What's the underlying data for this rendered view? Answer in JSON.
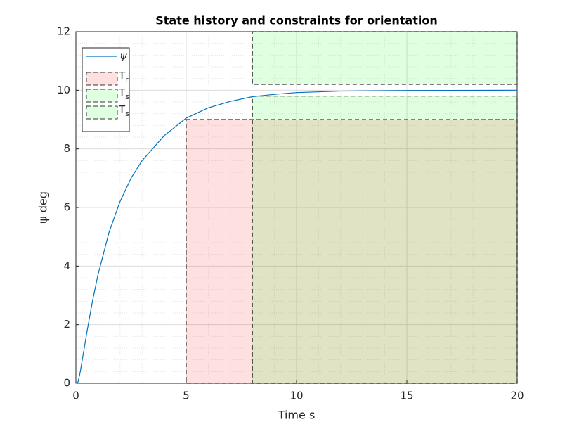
{
  "chart_data": {
    "type": "line",
    "title": "State history and constraints for orientation",
    "xlabel": "Time s",
    "ylabel": "ψ deg",
    "x": [
      0,
      0.1,
      0.2,
      0.3,
      0.5,
      0.75,
      1,
      1.5,
      2,
      2.5,
      3,
      4,
      5,
      6,
      7,
      8,
      9,
      10,
      12,
      15,
      20
    ],
    "series": [
      {
        "name": "ψ",
        "color": "#0072bd",
        "values": [
          0,
          0.05,
          0.4,
          0.85,
          1.75,
          2.8,
          3.7,
          5.15,
          6.2,
          7.0,
          7.6,
          8.45,
          9.05,
          9.4,
          9.62,
          9.78,
          9.86,
          9.92,
          9.97,
          9.99,
          10.0
        ]
      }
    ],
    "regions": [
      {
        "name": "T",
        "sub": "r",
        "color": "#ff0000",
        "x": [
          5,
          20
        ],
        "y": [
          0,
          9
        ]
      },
      {
        "name": "T",
        "sub": "s",
        "color": "#00ff00",
        "x": [
          8,
          20
        ],
        "y": [
          10.2,
          12
        ]
      },
      {
        "name": "T",
        "sub": "s",
        "color": "#00ff00",
        "x": [
          8,
          20
        ],
        "y": [
          0,
          9.8
        ]
      }
    ],
    "xlim": [
      0,
      20
    ],
    "xticks": [
      0,
      5,
      10,
      15,
      20
    ],
    "ylim": [
      0,
      12
    ],
    "yticks": [
      0,
      2,
      4,
      6,
      8,
      10,
      12
    ],
    "grid": true,
    "minor_grid": true,
    "legend": "upper left"
  }
}
